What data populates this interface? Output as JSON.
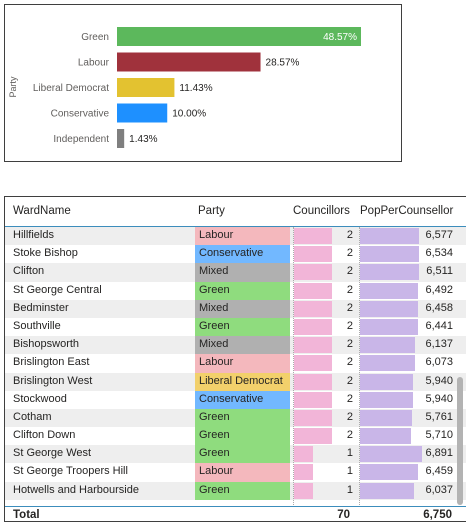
{
  "chart_data": {
    "type": "bar",
    "orientation": "horizontal",
    "categories": [
      "Green",
      "Labour",
      "Liberal Democrat",
      "Conservative",
      "Independent"
    ],
    "values": [
      48.57,
      28.57,
      11.43,
      10.0,
      1.43
    ],
    "value_labels": [
      "48.57%",
      "28.57%",
      "11.43%",
      "10.00%",
      "1.43%"
    ],
    "colors": [
      "#5cb85c",
      "#a0323c",
      "#e3c230",
      "#1e90ff",
      "#7f7f7f"
    ],
    "ylabel": "Party",
    "xlim": [
      0,
      48.57
    ],
    "grid": false
  },
  "table": {
    "headers": [
      "WardName",
      "Party",
      "Councillors",
      "PopPerCounsellor"
    ],
    "rows": [
      {
        "ward": "Hillfields",
        "party": "Labour",
        "councillors": "2",
        "pop": "6,577",
        "pop_n": 6577
      },
      {
        "ward": "Stoke Bishop",
        "party": "Conservative",
        "councillors": "2",
        "pop": "6,534",
        "pop_n": 6534
      },
      {
        "ward": "Clifton",
        "party": "Mixed",
        "councillors": "2",
        "pop": "6,511",
        "pop_n": 6511
      },
      {
        "ward": "St George Central",
        "party": "Green",
        "councillors": "2",
        "pop": "6,492",
        "pop_n": 6492
      },
      {
        "ward": "Bedminster",
        "party": "Mixed",
        "councillors": "2",
        "pop": "6,458",
        "pop_n": 6458
      },
      {
        "ward": "Southville",
        "party": "Green",
        "councillors": "2",
        "pop": "6,441",
        "pop_n": 6441
      },
      {
        "ward": "Bishopsworth",
        "party": "Mixed",
        "councillors": "2",
        "pop": "6,137",
        "pop_n": 6137
      },
      {
        "ward": "Brislington East",
        "party": "Labour",
        "councillors": "2",
        "pop": "6,073",
        "pop_n": 6073
      },
      {
        "ward": "Brislington West",
        "party": "Liberal Democrat",
        "councillors": "2",
        "pop": "5,940",
        "pop_n": 5940
      },
      {
        "ward": "Stockwood",
        "party": "Conservative",
        "councillors": "2",
        "pop": "5,940",
        "pop_n": 5940
      },
      {
        "ward": "Cotham",
        "party": "Green",
        "councillors": "2",
        "pop": "5,761",
        "pop_n": 5761
      },
      {
        "ward": "Clifton Down",
        "party": "Green",
        "councillors": "2",
        "pop": "5,710",
        "pop_n": 5710
      },
      {
        "ward": "St George West",
        "party": "Green",
        "councillors": "1",
        "pop": "6,891",
        "pop_n": 6891
      },
      {
        "ward": "St George Troopers Hill",
        "party": "Labour",
        "councillors": "1",
        "pop": "6,459",
        "pop_n": 6459
      },
      {
        "ward": "Hotwells and Harbourside",
        "party": "Green",
        "councillors": "1",
        "pop": "6,037",
        "pop_n": 6037
      }
    ],
    "party_colors": {
      "Labour": "#f4b8bd",
      "Conservative": "#72b8ff",
      "Mixed": "#b0b0b0",
      "Green": "#8fdc7e",
      "Liberal Democrat": "#f2d06b"
    },
    "councillor_max": 2,
    "pop_max": 6891,
    "total": {
      "label": "Total",
      "councillors": "70",
      "pop": "6,750"
    }
  }
}
